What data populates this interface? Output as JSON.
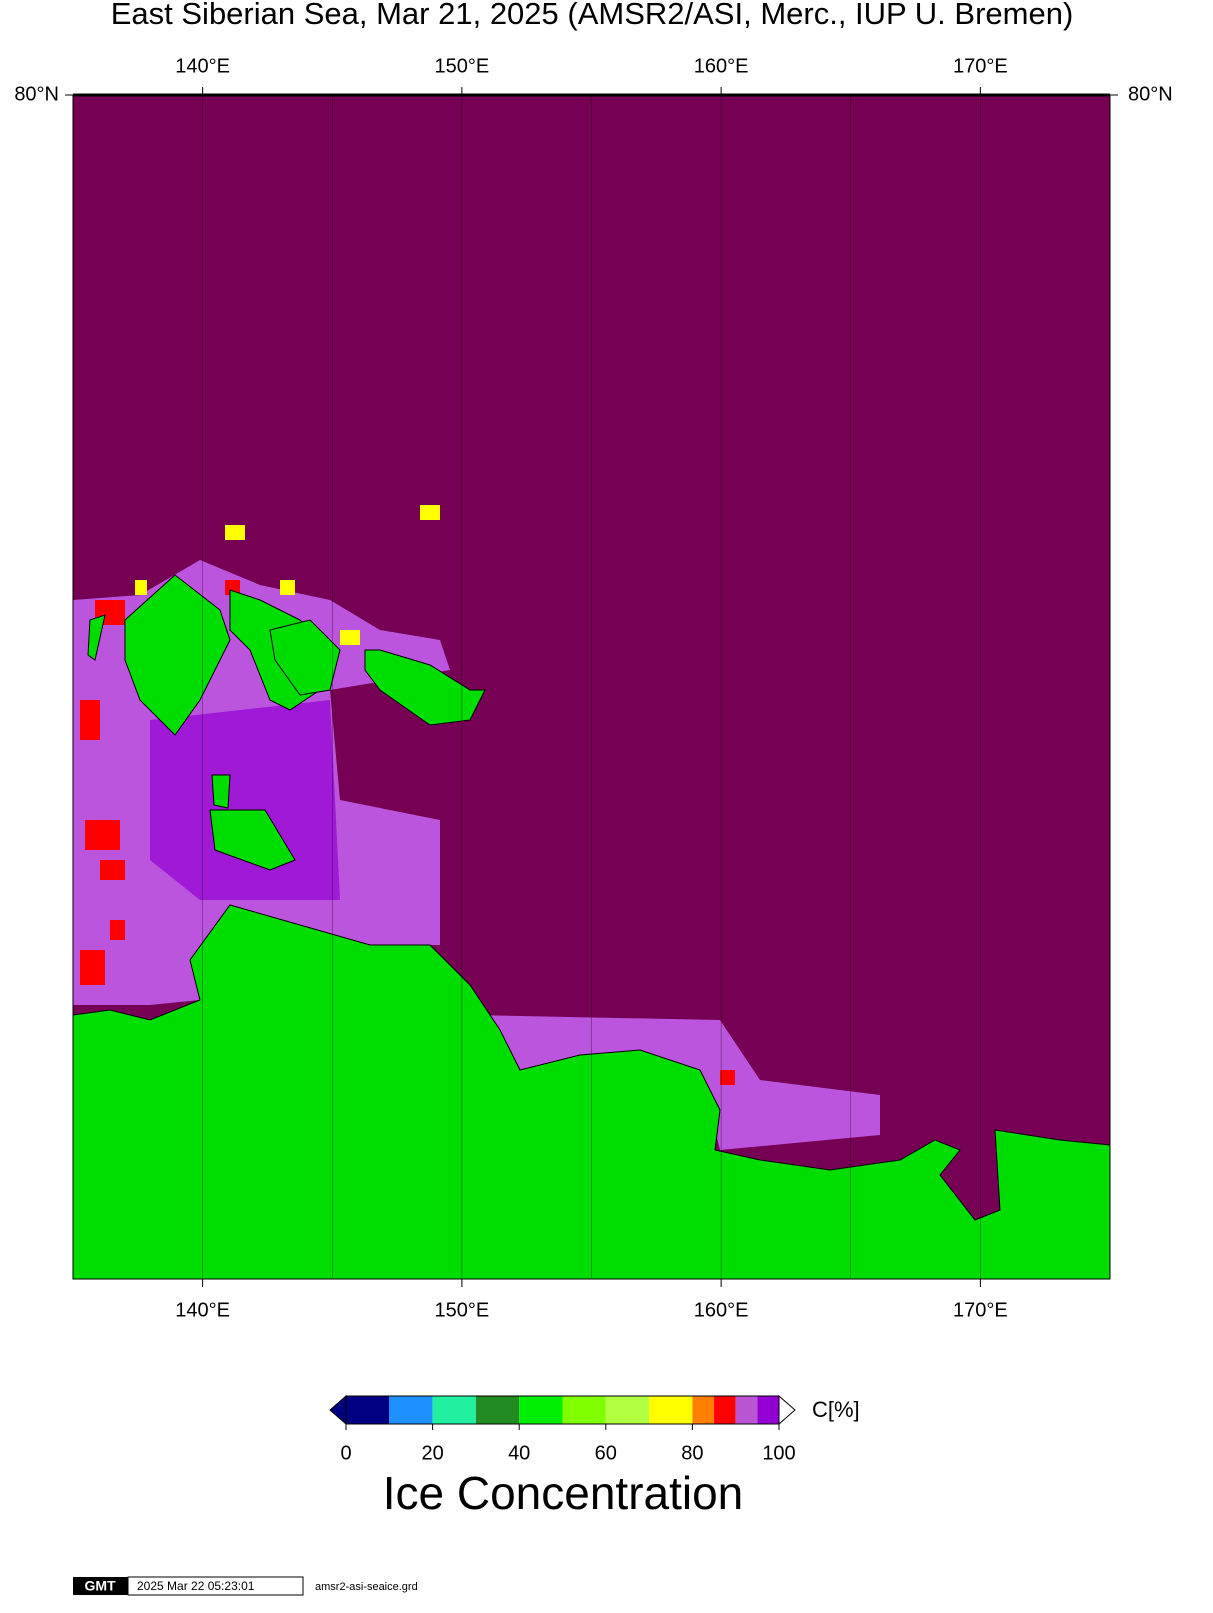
{
  "chart_data": {
    "type": "map",
    "title": "East Siberian Sea, Mar 21, 2025 (AMSR2/ASI, Merc., IUP U. Bremen)",
    "xlim": [
      135,
      175
    ],
    "xticks": [
      {
        "value": 140,
        "label": "140°E"
      },
      {
        "value": 150,
        "label": "150°E"
      },
      {
        "value": 160,
        "label": "160°E"
      },
      {
        "value": 170,
        "label": "170°E"
      }
    ],
    "ylim": [
      68,
      80
    ],
    "yticks": [
      {
        "value": 80,
        "label": "80°N"
      }
    ],
    "grid_lon": [
      140,
      145,
      150,
      155,
      160,
      165,
      170
    ],
    "colorbar": {
      "label": "C[%]",
      "title": "Ice Concentration",
      "lim": [
        0,
        100
      ],
      "ticks": [
        0,
        20,
        40,
        60,
        80,
        100
      ],
      "bins": [
        0,
        10,
        20,
        30,
        40,
        50,
        60,
        70,
        80,
        85,
        90,
        95,
        100
      ],
      "colors": [
        "#000080",
        "#1e90ff",
        "#20f0a0",
        "#228b22",
        "#00ee00",
        "#7fff00",
        "#b0ff40",
        "#ffff00",
        "#ff8000",
        "#ff0000",
        "#ba55d3",
        "#9400d3"
      ]
    },
    "footer": {
      "logo": "GMT",
      "timestamp": "2025 Mar 22 05:23:01",
      "source": "amsr2-asi-seaice.grd"
    }
  }
}
